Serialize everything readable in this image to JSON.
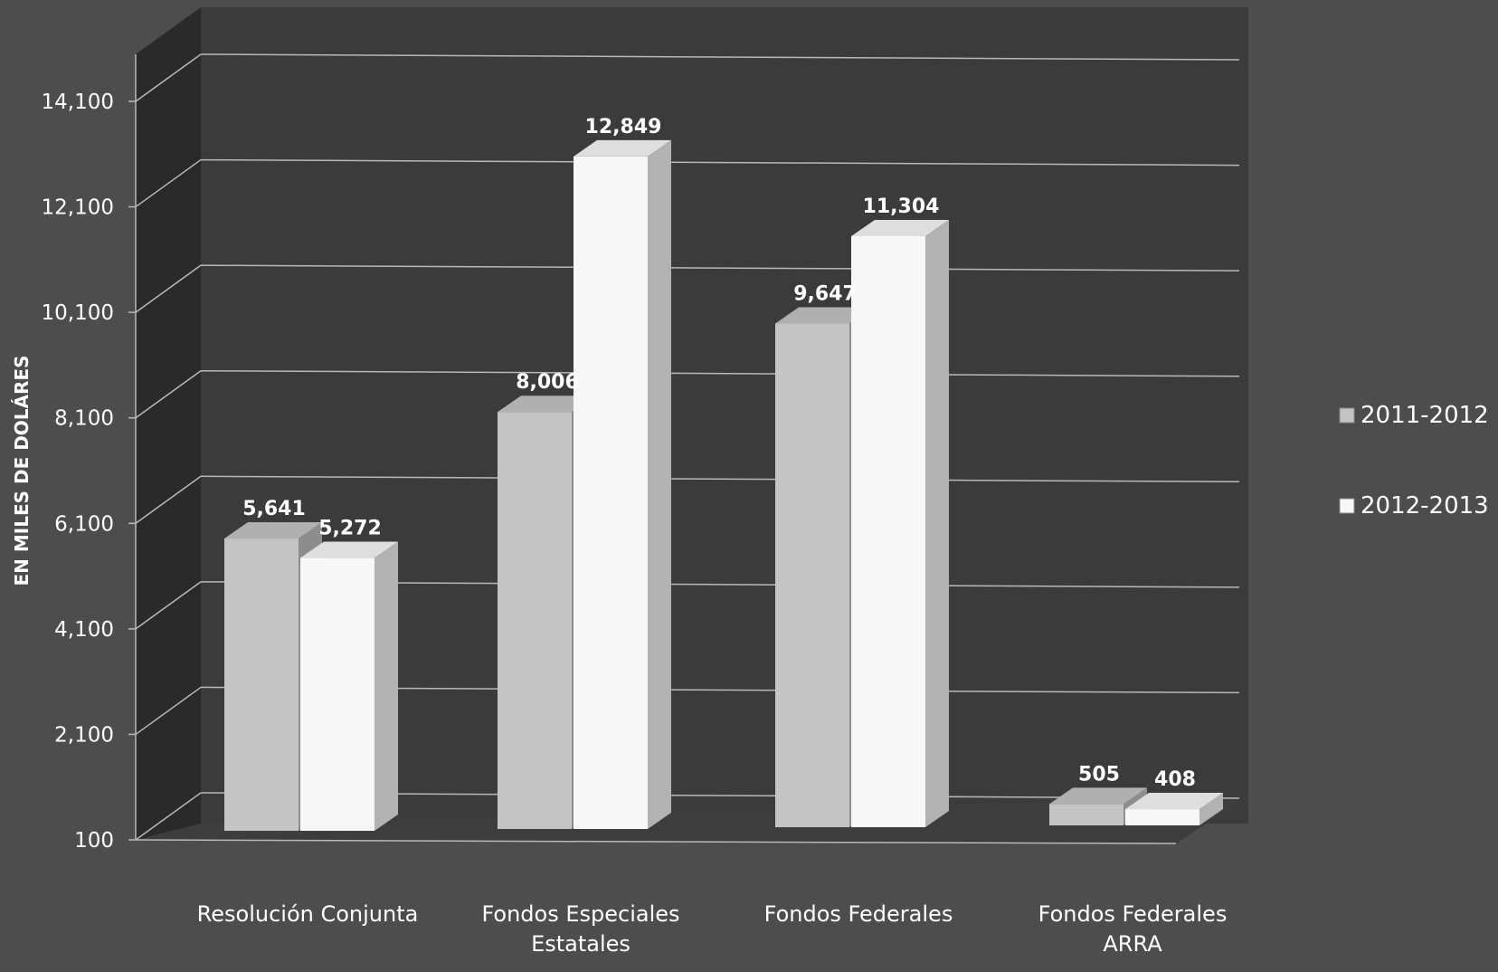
{
  "chart_data": {
    "type": "bar",
    "title": "",
    "xlabel": "",
    "ylabel": "EN MILES DE DOLÁRES",
    "categories": [
      [
        "Resolución Conjunta"
      ],
      [
        "Fondos Especiales",
        "Estatales"
      ],
      [
        "Fondos Federales"
      ],
      [
        "Fondos Federales",
        "ARRA"
      ]
    ],
    "series": [
      {
        "name": "2011-2012",
        "values": [
          5641,
          8006,
          9647,
          505
        ],
        "labels": [
          "5,641",
          "8,006",
          "9,647",
          "505"
        ],
        "color": "#c4c4c4"
      },
      {
        "name": "2012-2013",
        "values": [
          5272,
          12849,
          11304,
          408
        ],
        "labels": [
          "5,272",
          "12,849",
          "11,304",
          "408"
        ],
        "color": "#f7f7f7"
      }
    ],
    "y_ticks": [
      100,
      2100,
      4100,
      6100,
      8100,
      10100,
      12100,
      14100
    ],
    "y_tick_labels": [
      "100",
      "2,100",
      "4,100",
      "6,100",
      "8,100",
      "10,100",
      "12,100",
      "14,100"
    ],
    "ylim": [
      100,
      14100
    ],
    "grid": true,
    "legend_position": "right",
    "style": "3d-clustered-column"
  },
  "colors": {
    "background": "#4d4d4d",
    "plot_back_wall": "#3b3b3b",
    "plot_side_wall": "#2a2a2a",
    "gridline": "#b8b8b8",
    "text": "#ffffff"
  }
}
